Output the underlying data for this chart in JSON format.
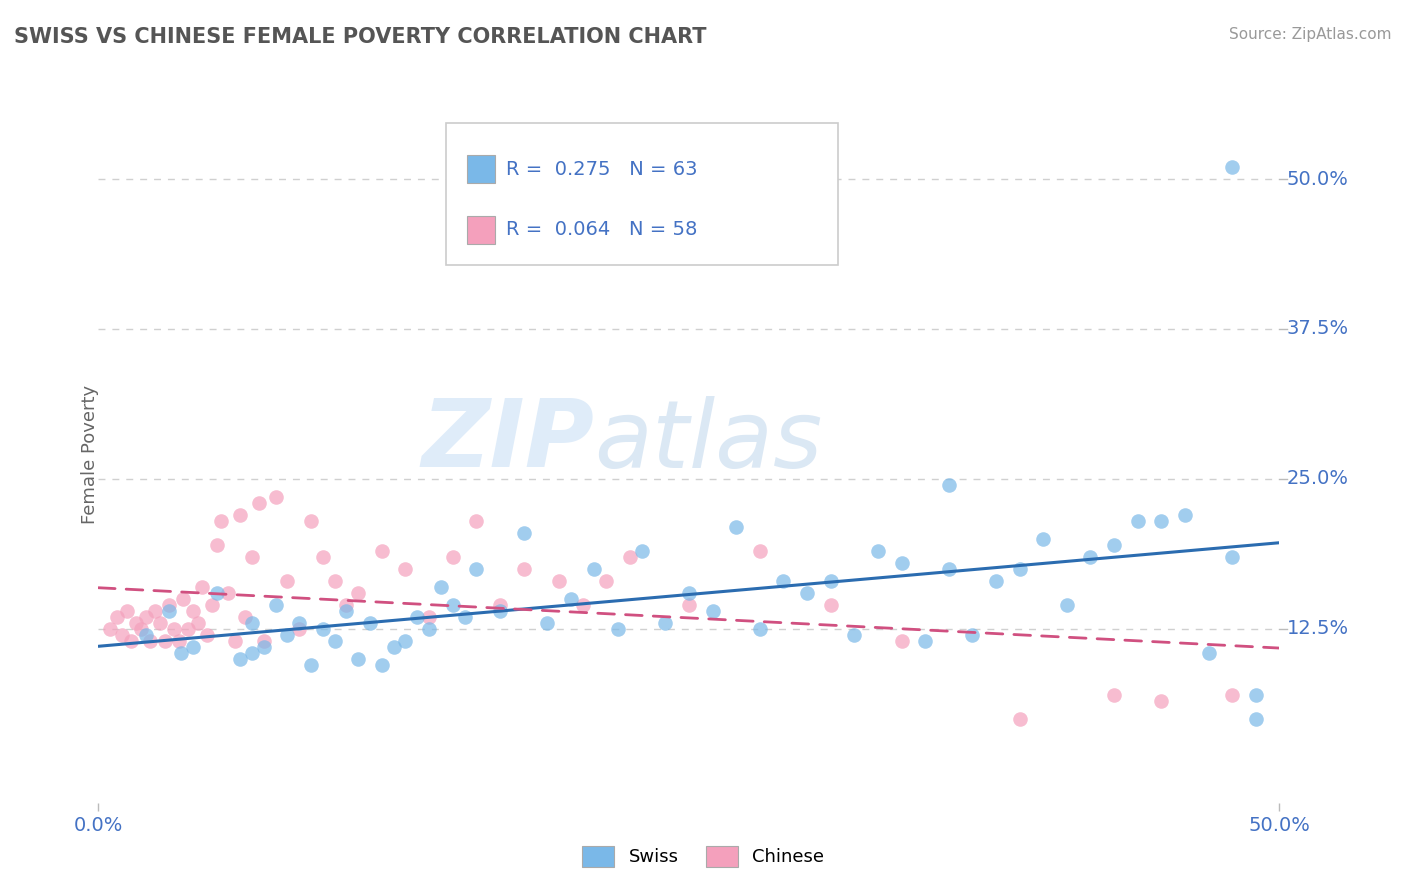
{
  "title": "SWISS VS CHINESE FEMALE POVERTY CORRELATION CHART",
  "source": "Source: ZipAtlas.com",
  "ylabel": "Female Poverty",
  "xlim": [
    0.0,
    0.5
  ],
  "ylim": [
    -0.02,
    0.56
  ],
  "swiss_R": 0.275,
  "swiss_N": 63,
  "chinese_R": 0.064,
  "chinese_N": 58,
  "swiss_color": "#7ab8e8",
  "chinese_color": "#f4a0bc",
  "swiss_line_color": "#2b6cb0",
  "chinese_line_color": "#d05080",
  "swiss_scatter_x": [
    0.02,
    0.03,
    0.04,
    0.05,
    0.06,
    0.065,
    0.07,
    0.075,
    0.08,
    0.085,
    0.09,
    0.095,
    0.1,
    0.105,
    0.11,
    0.115,
    0.12,
    0.125,
    0.13,
    0.135,
    0.14,
    0.145,
    0.15,
    0.155,
    0.16,
    0.17,
    0.18,
    0.19,
    0.2,
    0.21,
    0.22,
    0.23,
    0.24,
    0.25,
    0.26,
    0.27,
    0.28,
    0.29,
    0.3,
    0.31,
    0.32,
    0.33,
    0.34,
    0.35,
    0.36,
    0.37,
    0.38,
    0.39,
    0.4,
    0.41,
    0.42,
    0.43,
    0.44,
    0.45,
    0.46,
    0.47,
    0.48,
    0.49,
    0.035,
    0.065,
    0.36,
    0.48,
    0.49
  ],
  "swiss_scatter_y": [
    0.12,
    0.14,
    0.11,
    0.155,
    0.1,
    0.13,
    0.11,
    0.145,
    0.12,
    0.13,
    0.095,
    0.125,
    0.115,
    0.14,
    0.1,
    0.13,
    0.095,
    0.11,
    0.115,
    0.135,
    0.125,
    0.16,
    0.145,
    0.135,
    0.175,
    0.14,
    0.205,
    0.13,
    0.15,
    0.175,
    0.125,
    0.19,
    0.13,
    0.155,
    0.14,
    0.21,
    0.125,
    0.165,
    0.155,
    0.165,
    0.12,
    0.19,
    0.18,
    0.115,
    0.175,
    0.12,
    0.165,
    0.175,
    0.2,
    0.145,
    0.185,
    0.195,
    0.215,
    0.215,
    0.22,
    0.105,
    0.185,
    0.07,
    0.105,
    0.105,
    0.245,
    0.51,
    0.05
  ],
  "chinese_scatter_x": [
    0.005,
    0.008,
    0.01,
    0.012,
    0.014,
    0.016,
    0.018,
    0.02,
    0.022,
    0.024,
    0.026,
    0.028,
    0.03,
    0.032,
    0.034,
    0.036,
    0.038,
    0.04,
    0.042,
    0.044,
    0.046,
    0.048,
    0.05,
    0.052,
    0.055,
    0.058,
    0.06,
    0.062,
    0.065,
    0.068,
    0.07,
    0.075,
    0.08,
    0.085,
    0.09,
    0.095,
    0.1,
    0.105,
    0.11,
    0.12,
    0.13,
    0.14,
    0.15,
    0.16,
    0.17,
    0.18,
    0.195,
    0.205,
    0.215,
    0.225,
    0.25,
    0.28,
    0.31,
    0.34,
    0.39,
    0.43,
    0.45,
    0.48
  ],
  "chinese_scatter_y": [
    0.125,
    0.135,
    0.12,
    0.14,
    0.115,
    0.13,
    0.125,
    0.135,
    0.115,
    0.14,
    0.13,
    0.115,
    0.145,
    0.125,
    0.115,
    0.15,
    0.125,
    0.14,
    0.13,
    0.16,
    0.12,
    0.145,
    0.195,
    0.215,
    0.155,
    0.115,
    0.22,
    0.135,
    0.185,
    0.23,
    0.115,
    0.235,
    0.165,
    0.125,
    0.215,
    0.185,
    0.165,
    0.145,
    0.155,
    0.19,
    0.175,
    0.135,
    0.185,
    0.215,
    0.145,
    0.175,
    0.165,
    0.145,
    0.165,
    0.185,
    0.145,
    0.19,
    0.145,
    0.115,
    0.05,
    0.07,
    0.065,
    0.07
  ],
  "watermark_zip": "ZIP",
  "watermark_atlas": "atlas",
  "background_color": "#ffffff",
  "grid_color": "#d0d0d0",
  "ytick_vals": [
    0.125,
    0.25,
    0.375,
    0.5
  ],
  "ytick_labels": [
    "12.5%",
    "25.0%",
    "37.5%",
    "50.0%"
  ],
  "xtick_vals": [
    0.0,
    0.5
  ],
  "xtick_labels": [
    "0.0%",
    "50.0%"
  ],
  "tick_color": "#4472c4",
  "title_color": "#555555",
  "source_color": "#999999",
  "ylabel_color": "#666666"
}
